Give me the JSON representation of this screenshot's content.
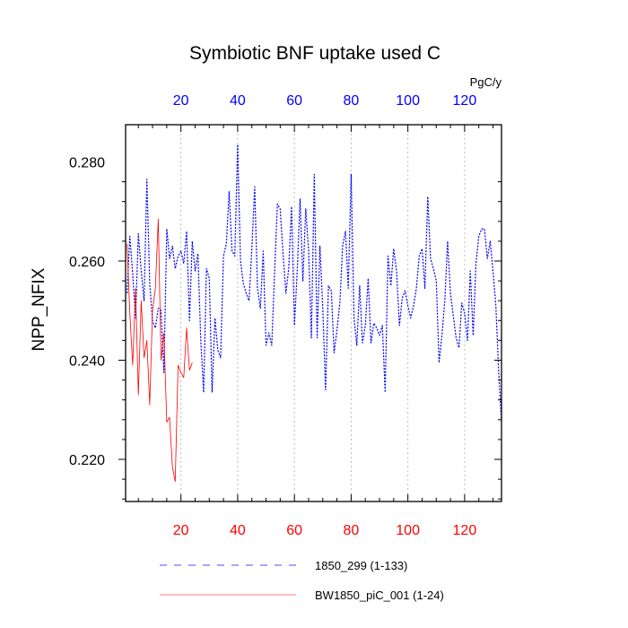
{
  "chart_data": {
    "type": "line",
    "title": "Symbiotic BNF uptake used C",
    "ylabel": "NPP_NFIX",
    "unit_label": "PgC/y",
    "xlim": [
      0.5,
      133
    ],
    "ylim": [
      0.2115,
      0.2875
    ],
    "x_ticks": [
      20,
      40,
      60,
      80,
      100,
      120
    ],
    "y_ticks": [
      0.22,
      0.24,
      0.26,
      0.28
    ],
    "y_tick_labels": [
      "0.220",
      "0.240",
      "0.260",
      "0.280"
    ],
    "x_tick_labels": [
      "20",
      "40",
      "60",
      "80",
      "100",
      "120"
    ],
    "x_gridlines": true,
    "legend_position": "bottom",
    "series": [
      {
        "name": "1850_299 (1-133)",
        "color": "#0000ff",
        "style": "dotted",
        "x_axis": "top",
        "values": [
          0.2535,
          0.265,
          0.2575,
          0.2485,
          0.2655,
          0.258,
          0.252,
          0.2765,
          0.2555,
          0.248,
          0.2465,
          0.2505,
          0.25,
          0.2375,
          0.2665,
          0.2605,
          0.263,
          0.2585,
          0.261,
          0.262,
          0.2595,
          0.266,
          0.248,
          0.264,
          0.258,
          0.2615,
          0.244,
          0.2335,
          0.2585,
          0.2565,
          0.2335,
          0.2485,
          0.242,
          0.2405,
          0.261,
          0.2635,
          0.274,
          0.262,
          0.261,
          0.2835,
          0.26,
          0.2555,
          0.2535,
          0.252,
          0.2625,
          0.275,
          0.2545,
          0.2505,
          0.262,
          0.243,
          0.2455,
          0.243,
          0.2575,
          0.2715,
          0.2705,
          0.2615,
          0.2535,
          0.2585,
          0.271,
          0.247,
          0.258,
          0.2725,
          0.256,
          0.2705,
          0.262,
          0.2445,
          0.2775,
          0.2445,
          0.263,
          0.2505,
          0.234,
          0.255,
          0.254,
          0.2415,
          0.246,
          0.2515,
          0.263,
          0.266,
          0.2545,
          0.2775,
          0.2485,
          0.243,
          0.255,
          0.2435,
          0.247,
          0.2565,
          0.2435,
          0.2475,
          0.2465,
          0.245,
          0.247,
          0.2335,
          0.261,
          0.255,
          0.2625,
          0.258,
          0.247,
          0.2525,
          0.254,
          0.251,
          0.2485,
          0.251,
          0.2545,
          0.261,
          0.2625,
          0.2545,
          0.273,
          0.2605,
          0.2585,
          0.256,
          0.2395,
          0.245,
          0.252,
          0.264,
          0.2535,
          0.249,
          0.2445,
          0.2425,
          0.2515,
          0.2495,
          0.244,
          0.258,
          0.245,
          0.2595,
          0.265,
          0.2665,
          0.2665,
          0.2605,
          0.264,
          0.258,
          0.251,
          0.238,
          0.2275
        ]
      },
      {
        "name": "BW1850_piC_001 (1-24)",
        "color": "#ff0000",
        "style": "solid",
        "x_axis": "bottom",
        "values": [
          0.2635,
          0.2495,
          0.239,
          0.2545,
          0.233,
          0.252,
          0.2405,
          0.244,
          0.231,
          0.25,
          0.2545,
          0.2685,
          0.24,
          0.2455,
          0.2275,
          0.2285,
          0.2185,
          0.2155,
          0.239,
          0.2375,
          0.2365,
          0.2465,
          0.238,
          0.2395
        ]
      }
    ]
  }
}
